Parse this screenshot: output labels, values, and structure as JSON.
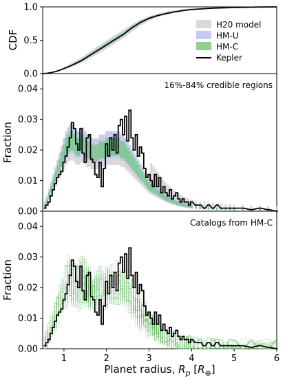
{
  "chart_data": [
    {
      "type": "line",
      "panel": "cdf",
      "ylabel": "CDF",
      "xlim": [
        0.5,
        6
      ],
      "ylim": [
        0,
        1
      ],
      "yticks": [
        "0.0",
        "0.5",
        "1.0"
      ],
      "legend_position": "right",
      "legend": [
        {
          "label": "H20 model",
          "color": "#d9d9d9"
        },
        {
          "label": "HM-U",
          "color": "#c7c9f2"
        },
        {
          "label": "HM-C",
          "color": "#8fcf8f"
        },
        {
          "label": "Kepler",
          "color": "#000000"
        }
      ],
      "x": [
        0.5,
        0.6,
        0.7,
        0.8,
        0.9,
        1.0,
        1.1,
        1.2,
        1.3,
        1.4,
        1.5,
        1.6,
        1.7,
        1.8,
        1.9,
        2.0,
        2.1,
        2.2,
        2.3,
        2.4,
        2.5,
        2.6,
        2.7,
        2.8,
        2.9,
        3.0,
        3.2,
        3.4,
        3.6,
        3.8,
        4.0,
        4.5,
        5.0,
        5.5,
        6.0
      ],
      "series": [
        {
          "name": "Kepler",
          "values": [
            0.0,
            0.005,
            0.015,
            0.03,
            0.05,
            0.075,
            0.1,
            0.13,
            0.16,
            0.19,
            0.23,
            0.27,
            0.31,
            0.35,
            0.39,
            0.43,
            0.47,
            0.51,
            0.55,
            0.59,
            0.64,
            0.69,
            0.73,
            0.77,
            0.8,
            0.83,
            0.87,
            0.9,
            0.925,
            0.945,
            0.96,
            0.98,
            0.99,
            0.997,
            1.0
          ]
        },
        {
          "name": "HM-C",
          "values": [
            0.0,
            0.006,
            0.017,
            0.032,
            0.052,
            0.078,
            0.105,
            0.135,
            0.166,
            0.198,
            0.235,
            0.275,
            0.315,
            0.355,
            0.395,
            0.435,
            0.475,
            0.515,
            0.555,
            0.595,
            0.64,
            0.685,
            0.725,
            0.765,
            0.795,
            0.825,
            0.87,
            0.905,
            0.93,
            0.95,
            0.965,
            0.985,
            0.993,
            0.998,
            1.0
          ]
        }
      ]
    },
    {
      "type": "area",
      "panel": "credible",
      "annotation": "16%-84% credible regions",
      "ylabel": "Fraction",
      "xlim": [
        0.5,
        6
      ],
      "ylim": [
        0,
        0.045
      ],
      "yticks": [
        "0.00",
        "0.01",
        "0.02",
        "0.03",
        "0.04"
      ],
      "bin_width": 0.05,
      "x": [
        0.55,
        0.6,
        0.65,
        0.7,
        0.75,
        0.8,
        0.85,
        0.9,
        0.95,
        1.0,
        1.05,
        1.1,
        1.15,
        1.2,
        1.25,
        1.3,
        1.35,
        1.4,
        1.45,
        1.5,
        1.55,
        1.6,
        1.65,
        1.7,
        1.75,
        1.8,
        1.85,
        1.9,
        1.95,
        2.0,
        2.05,
        2.1,
        2.15,
        2.2,
        2.25,
        2.3,
        2.35,
        2.4,
        2.45,
        2.5,
        2.55,
        2.6,
        2.65,
        2.7,
        2.75,
        2.8,
        2.85,
        2.9,
        2.95,
        3.0,
        3.05,
        3.1,
        3.15,
        3.2,
        3.25,
        3.3,
        3.35,
        3.4,
        3.45,
        3.5,
        3.55,
        3.6,
        3.65,
        3.7,
        3.75,
        3.8,
        3.85,
        3.9,
        3.95,
        4.0,
        4.1,
        4.2,
        4.3,
        4.4,
        4.5,
        4.6,
        4.7,
        4.8,
        4.9,
        5.0,
        5.2,
        5.4,
        5.6,
        5.8,
        6.0
      ],
      "series": [
        {
          "name": "Kepler",
          "values": [
            0.001,
            0.002,
            0.003,
            0.005,
            0.007,
            0.009,
            0.011,
            0.012,
            0.013,
            0.016,
            0.018,
            0.021,
            0.024,
            0.029,
            0.027,
            0.022,
            0.02,
            0.027,
            0.019,
            0.016,
            0.024,
            0.025,
            0.017,
            0.016,
            0.012,
            0.011,
            0.016,
            0.008,
            0.014,
            0.022,
            0.018,
            0.024,
            0.02,
            0.025,
            0.019,
            0.028,
            0.03,
            0.025,
            0.031,
            0.023,
            0.033,
            0.024,
            0.02,
            0.025,
            0.018,
            0.021,
            0.019,
            0.014,
            0.011,
            0.012,
            0.01,
            0.008,
            0.012,
            0.008,
            0.011,
            0.006,
            0.008,
            0.006,
            0.005,
            0.007,
            0.004,
            0.005,
            0.006,
            0.004,
            0.003,
            0.004,
            0.003,
            0.003,
            0.002,
            0.003,
            0.002,
            0.002,
            0.001,
            0.002,
            0.001,
            0.002,
            0.001,
            0.001,
            0.001,
            0.001,
            0.001,
            0.0005,
            0.001,
            0.0005,
            0.0
          ]
        },
        {
          "name": "HM-C",
          "values": [
            0.0015,
            0.003,
            0.005,
            0.007,
            0.009,
            0.011,
            0.013,
            0.015,
            0.017,
            0.019,
            0.021,
            0.022,
            0.023,
            0.023,
            0.022,
            0.021,
            0.021,
            0.022,
            0.022,
            0.021,
            0.02,
            0.02,
            0.019,
            0.019,
            0.019,
            0.019,
            0.02,
            0.02,
            0.02,
            0.021,
            0.021,
            0.021,
            0.021,
            0.021,
            0.021,
            0.021,
            0.02,
            0.02,
            0.019,
            0.018,
            0.017,
            0.016,
            0.015,
            0.014,
            0.013,
            0.012,
            0.011,
            0.01,
            0.009,
            0.008,
            0.0075,
            0.007,
            0.0065,
            0.006,
            0.0055,
            0.005,
            0.0045,
            0.004,
            0.0037,
            0.0034,
            0.003,
            0.0028,
            0.0025,
            0.0022,
            0.002,
            0.0018,
            0.0016,
            0.0015,
            0.0013,
            0.0012,
            0.001,
            0.0009,
            0.0008,
            0.0007,
            0.0006,
            0.0005,
            0.0005,
            0.0004,
            0.0004,
            0.0003,
            0.0003,
            0.0002,
            0.0002,
            0.0001,
            0.0
          ]
        }
      ]
    },
    {
      "type": "area",
      "panel": "catalogs",
      "annotation": "Catalogs from HM-C",
      "ylabel": "Fraction",
      "xlim": [
        0.5,
        6
      ],
      "ylim": [
        0,
        0.045
      ],
      "yticks": [
        "0.00",
        "0.01",
        "0.02",
        "0.03",
        "0.04"
      ],
      "x_ticks": [
        "1",
        "2",
        "3",
        "4",
        "5",
        "6"
      ],
      "xlabel_prefix": "Planet radius, ",
      "xlabel_sym": "R",
      "xlabel_sub": "p",
      "xlabel_unit_open": " [",
      "xlabel_unit_sym": "R",
      "xlabel_unit_sub": "⊕",
      "xlabel_unit_close": "]"
    }
  ]
}
